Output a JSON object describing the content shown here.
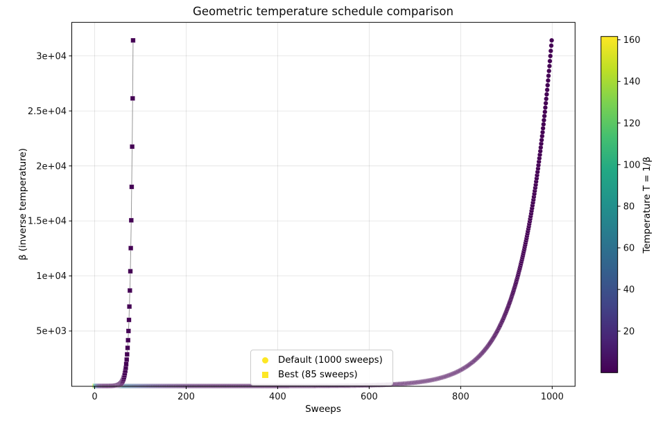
{
  "chart_data": {
    "type": "scatter",
    "title": "Geometric temperature schedule comparison",
    "xlabel": "Sweeps",
    "ylabel": "β (inverse temperature)",
    "xlim": [
      -50,
      1050
    ],
    "ylim": [
      -30,
      33050
    ],
    "xticks": [
      0,
      200,
      400,
      600,
      800,
      1000
    ],
    "xtick_labels": [
      "0",
      "200",
      "400",
      "600",
      "800",
      "1000"
    ],
    "yticks": [
      5000,
      10000,
      15000,
      20000,
      25000,
      30000
    ],
    "ytick_labels": [
      "5e+03",
      "1e+04",
      "1.5e+04",
      "2e+04",
      "2.5e+04",
      "3e+04"
    ],
    "grid": true,
    "grid_color": "rgba(0,0,0,0.12)",
    "line_color": "#8c8c8c",
    "marker_edge_color": "rgba(255,255,255,0.45)",
    "series": [
      {
        "name": "Default (1000 sweeps)",
        "marker": "circle",
        "schedule": "geometric",
        "n_sweeps": 1000,
        "beta_start": 0.00619,
        "beta_end": 31416,
        "color_encodes": "temperature T = 1/beta"
      },
      {
        "name": "Best (85 sweeps)",
        "marker": "square",
        "schedule": "geometric",
        "n_sweeps": 85,
        "beta_start": 0.00619,
        "beta_end": 31416,
        "color_encodes": "temperature T = 1/beta"
      }
    ],
    "colorbar": {
      "label": "Temperature T = 1/β",
      "vmin": 0,
      "vmax": 161.6,
      "ticks": [
        20,
        40,
        60,
        80,
        100,
        120,
        140,
        160
      ],
      "tick_labels": [
        "20",
        "40",
        "60",
        "80",
        "100",
        "120",
        "140",
        "160"
      ],
      "colormap": "viridis",
      "stops": [
        [
          0.0,
          "#440154"
        ],
        [
          0.1,
          "#482475"
        ],
        [
          0.2,
          "#414487"
        ],
        [
          0.3,
          "#355f8d"
        ],
        [
          0.4,
          "#2a788e"
        ],
        [
          0.5,
          "#21918c"
        ],
        [
          0.6,
          "#22a884"
        ],
        [
          0.7,
          "#44bf70"
        ],
        [
          0.8,
          "#7ad151"
        ],
        [
          0.9,
          "#bddf26"
        ],
        [
          1.0,
          "#fde725"
        ]
      ]
    },
    "legend": {
      "position": "lower center",
      "marker_color": "#fde725",
      "items": [
        {
          "label": "Default (1000 sweeps)",
          "marker": "circle"
        },
        {
          "label": "Best (85 sweeps)",
          "marker": "square"
        }
      ]
    }
  }
}
